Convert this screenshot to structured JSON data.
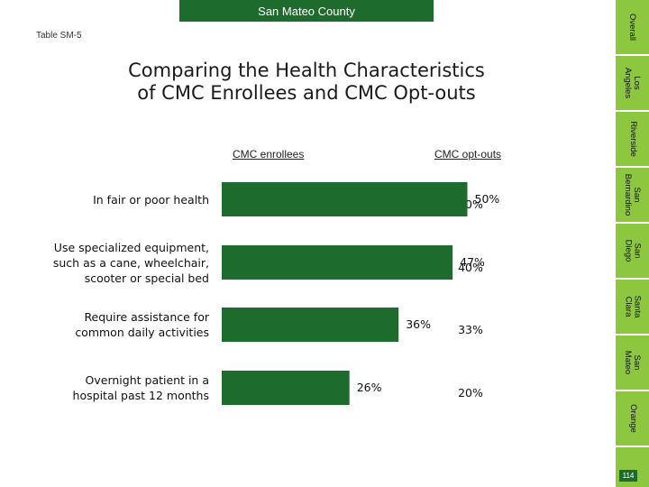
{
  "header": {
    "county_tab": "San Mateo County"
  },
  "table_id": "Table SM-5",
  "title_lines": [
    "Comparing the Health Characteristics",
    "of CMC Enrollees and CMC Opt-outs"
  ],
  "column_headers": {
    "enrollees": "CMC enrollees",
    "optouts": "CMC opt-outs"
  },
  "sidebar": {
    "tabs": [
      {
        "lines": [
          "Overall"
        ]
      },
      {
        "lines": [
          "Los",
          "Angeles"
        ]
      },
      {
        "lines": [
          "Riverside"
        ]
      },
      {
        "lines": [
          "San",
          "Bernardino"
        ]
      },
      {
        "lines": [
          "San",
          "Diego"
        ]
      },
      {
        "lines": [
          "Santa",
          "Clara"
        ]
      },
      {
        "lines": [
          "San",
          "Mateo"
        ]
      },
      {
        "lines": [
          "Orange"
        ]
      }
    ],
    "page_number": "114",
    "colors": {
      "tab_fill": "#8dc63f",
      "active_fill": "#1e6b2e",
      "border": "#ffffff"
    }
  },
  "chart_data": {
    "type": "bar",
    "orientation": "horizontal",
    "categories": [
      [
        "In fair or poor health"
      ],
      [
        "Use specialized equipment,",
        "such as a cane, wheelchair,",
        "scooter or special bed"
      ],
      [
        "Require assistance for",
        "common daily activities"
      ],
      [
        "Overnight patient in a",
        "hospital past 12 months"
      ]
    ],
    "series": [
      {
        "name": "CMC enrollees",
        "values": [
          50,
          47,
          36,
          26
        ],
        "labels": [
          "50%",
          "47%",
          "36%",
          "26%"
        ],
        "color": "#1e6b2e"
      },
      {
        "name": "CMC opt-outs",
        "values": [
          50,
          40,
          33,
          20
        ],
        "labels": [
          "50%",
          "40%",
          "33%",
          "20%"
        ]
      }
    ],
    "xlim": [
      0,
      100
    ],
    "grid": false
  }
}
